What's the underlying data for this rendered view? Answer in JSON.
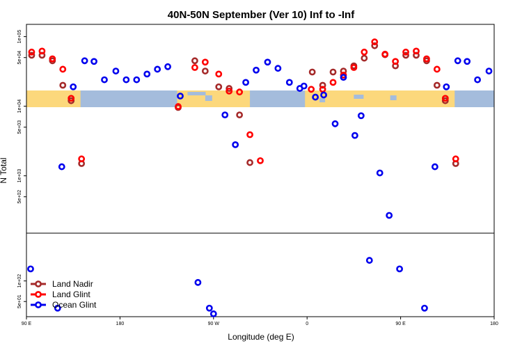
{
  "chart_data": {
    "type": "scatter",
    "title": "40N-50N September (Ver 10)   Inf to -Inf",
    "xlabel": "Longitude (deg E)",
    "ylabel": "N Total",
    "x_scale": "longitude, 90E to 180 (wraps through 0)",
    "y_scale": "log",
    "x_ticks": [
      {
        "lon": 90,
        "label": "90 E"
      },
      {
        "lon": 180,
        "label": "180"
      },
      {
        "lon": 270,
        "label": "90 W"
      },
      {
        "lon": 360,
        "label": "0"
      },
      {
        "lon": 450,
        "label": "90 E"
      },
      {
        "lon": 540,
        "label": "180"
      }
    ],
    "upper_panel": {
      "ylim": [
        150,
        150000
      ],
      "y_ticks": [
        {
          "value": 100000,
          "label": "1e+05"
        },
        {
          "value": 50000,
          "label": "5e+04"
        },
        {
          "value": 10000,
          "label": "1e+04"
        },
        {
          "value": 5000,
          "label": "5e+03"
        },
        {
          "value": 1000,
          "label": "1e+03"
        },
        {
          "value": 500,
          "label": "5e+02"
        }
      ]
    },
    "lower_panel": {
      "ylim": [
        30,
        500
      ],
      "y_ticks": [
        {
          "value": 100,
          "label": "1e+02"
        },
        {
          "value": 50,
          "label": "5e+01"
        }
      ]
    },
    "map_band": {
      "ocean_color": "#a4bcdc",
      "land_color": "#fcd87c"
    },
    "legend": {
      "position": "bottom-left"
    },
    "series": [
      {
        "name": "Land Nadir",
        "color": "#a52a2a",
        "points": [
          {
            "lon": 95,
            "value": 54000,
            "panel": "upper"
          },
          {
            "lon": 105,
            "value": 54000,
            "panel": "upper"
          },
          {
            "lon": 115,
            "value": 45000,
            "panel": "upper"
          },
          {
            "lon": 125,
            "value": 20000,
            "panel": "upper"
          },
          {
            "lon": 133,
            "value": 12000,
            "panel": "upper"
          },
          {
            "lon": 143,
            "value": 1500,
            "panel": "upper"
          },
          {
            "lon": 236,
            "value": 9600,
            "panel": "upper"
          },
          {
            "lon": 252,
            "value": 45000,
            "panel": "upper"
          },
          {
            "lon": 262,
            "value": 32000,
            "panel": "upper"
          },
          {
            "lon": 275,
            "value": 19000,
            "panel": "upper"
          },
          {
            "lon": 285,
            "value": 18000,
            "panel": "upper"
          },
          {
            "lon": 295,
            "value": 7500,
            "panel": "upper"
          },
          {
            "lon": 305,
            "value": 1550,
            "panel": "upper"
          },
          {
            "lon": 365,
            "value": 31000,
            "panel": "upper"
          },
          {
            "lon": 375,
            "value": 20000,
            "panel": "upper"
          },
          {
            "lon": 385,
            "value": 31000,
            "panel": "upper"
          },
          {
            "lon": 395,
            "value": 32000,
            "panel": "upper"
          },
          {
            "lon": 405,
            "value": 38000,
            "panel": "upper"
          },
          {
            "lon": 415,
            "value": 49000,
            "panel": "upper"
          },
          {
            "lon": 425,
            "value": 74000,
            "panel": "upper"
          },
          {
            "lon": 435,
            "value": 55000,
            "panel": "upper"
          },
          {
            "lon": 445,
            "value": 38000,
            "panel": "upper"
          },
          {
            "lon": 455,
            "value": 54000,
            "panel": "upper"
          },
          {
            "lon": 465,
            "value": 54000,
            "panel": "upper"
          },
          {
            "lon": 475,
            "value": 45000,
            "panel": "upper"
          },
          {
            "lon": 485,
            "value": 20000,
            "panel": "upper"
          },
          {
            "lon": 493,
            "value": 12000,
            "panel": "upper"
          },
          {
            "lon": 503,
            "value": 1500,
            "panel": "upper"
          }
        ]
      },
      {
        "name": "Land Glint",
        "color": "#ff0000",
        "points": [
          {
            "lon": 95,
            "value": 60000,
            "panel": "upper"
          },
          {
            "lon": 105,
            "value": 62000,
            "panel": "upper"
          },
          {
            "lon": 115,
            "value": 48000,
            "panel": "upper"
          },
          {
            "lon": 125,
            "value": 34000,
            "panel": "upper"
          },
          {
            "lon": 133,
            "value": 13000,
            "panel": "upper"
          },
          {
            "lon": 143,
            "value": 1750,
            "panel": "upper"
          },
          {
            "lon": 236,
            "value": 9900,
            "panel": "upper"
          },
          {
            "lon": 252,
            "value": 36000,
            "panel": "upper"
          },
          {
            "lon": 262,
            "value": 43000,
            "panel": "upper"
          },
          {
            "lon": 275,
            "value": 29000,
            "panel": "upper"
          },
          {
            "lon": 285,
            "value": 16500,
            "panel": "upper"
          },
          {
            "lon": 295,
            "value": 16000,
            "panel": "upper"
          },
          {
            "lon": 305,
            "value": 3900,
            "panel": "upper"
          },
          {
            "lon": 315,
            "value": 1650,
            "panel": "upper"
          },
          {
            "lon": 364,
            "value": 17500,
            "panel": "upper"
          },
          {
            "lon": 375,
            "value": 17500,
            "panel": "upper"
          },
          {
            "lon": 385,
            "value": 22000,
            "panel": "upper"
          },
          {
            "lon": 395,
            "value": 28000,
            "panel": "upper"
          },
          {
            "lon": 405,
            "value": 36000,
            "panel": "upper"
          },
          {
            "lon": 415,
            "value": 60000,
            "panel": "upper"
          },
          {
            "lon": 425,
            "value": 84000,
            "panel": "upper"
          },
          {
            "lon": 435,
            "value": 56000,
            "panel": "upper"
          },
          {
            "lon": 445,
            "value": 44000,
            "panel": "upper"
          },
          {
            "lon": 455,
            "value": 60000,
            "panel": "upper"
          },
          {
            "lon": 465,
            "value": 62000,
            "panel": "upper"
          },
          {
            "lon": 475,
            "value": 48000,
            "panel": "upper"
          },
          {
            "lon": 485,
            "value": 34000,
            "panel": "upper"
          },
          {
            "lon": 493,
            "value": 13000,
            "panel": "upper"
          },
          {
            "lon": 503,
            "value": 1750,
            "panel": "upper"
          }
        ]
      },
      {
        "name": "Ocean Glint",
        "color": "#0000ee",
        "points": [
          {
            "lon": 94,
            "value": 150,
            "panel": "lower"
          },
          {
            "lon": 120,
            "value": 40,
            "panel": "lower"
          },
          {
            "lon": 124,
            "value": 1350,
            "panel": "upper"
          },
          {
            "lon": 135,
            "value": 19000,
            "panel": "upper"
          },
          {
            "lon": 146,
            "value": 45000,
            "panel": "upper"
          },
          {
            "lon": 155,
            "value": 44000,
            "panel": "upper"
          },
          {
            "lon": 165,
            "value": 24000,
            "panel": "upper"
          },
          {
            "lon": 176,
            "value": 32000,
            "panel": "upper"
          },
          {
            "lon": 186,
            "value": 24000,
            "panel": "upper"
          },
          {
            "lon": 196,
            "value": 24000,
            "panel": "upper"
          },
          {
            "lon": 206,
            "value": 29000,
            "panel": "upper"
          },
          {
            "lon": 216,
            "value": 34000,
            "panel": "upper"
          },
          {
            "lon": 226,
            "value": 37000,
            "panel": "upper"
          },
          {
            "lon": 238,
            "value": 14000,
            "panel": "upper"
          },
          {
            "lon": 255,
            "value": 95,
            "panel": "lower"
          },
          {
            "lon": 266,
            "value": 40,
            "panel": "lower"
          },
          {
            "lon": 270,
            "value": 33,
            "panel": "lower"
          },
          {
            "lon": 281,
            "value": 7500,
            "panel": "upper"
          },
          {
            "lon": 291,
            "value": 2800,
            "panel": "upper"
          },
          {
            "lon": 301,
            "value": 22000,
            "panel": "upper"
          },
          {
            "lon": 311,
            "value": 33000,
            "panel": "upper"
          },
          {
            "lon": 322,
            "value": 43000,
            "panel": "upper"
          },
          {
            "lon": 332,
            "value": 35000,
            "panel": "upper"
          },
          {
            "lon": 343,
            "value": 22000,
            "panel": "upper"
          },
          {
            "lon": 353,
            "value": 18000,
            "panel": "upper"
          },
          {
            "lon": 357,
            "value": 19500,
            "panel": "upper"
          },
          {
            "lon": 368,
            "value": 13500,
            "panel": "upper"
          },
          {
            "lon": 376,
            "value": 14500,
            "panel": "upper"
          },
          {
            "lon": 387,
            "value": 5600,
            "panel": "upper"
          },
          {
            "lon": 395,
            "value": 26000,
            "panel": "upper"
          },
          {
            "lon": 406,
            "value": 3800,
            "panel": "upper"
          },
          {
            "lon": 412,
            "value": 7300,
            "panel": "upper"
          },
          {
            "lon": 420,
            "value": 200,
            "panel": "lower"
          },
          {
            "lon": 430,
            "value": 1100,
            "panel": "upper"
          },
          {
            "lon": 439,
            "value": 270,
            "panel": "upper"
          },
          {
            "lon": 449,
            "value": 150,
            "panel": "lower"
          },
          {
            "lon": 473,
            "value": 40,
            "panel": "lower"
          },
          {
            "lon": 483,
            "value": 1350,
            "panel": "upper"
          },
          {
            "lon": 494,
            "value": 19000,
            "panel": "upper"
          },
          {
            "lon": 505,
            "value": 45000,
            "panel": "upper"
          },
          {
            "lon": 514,
            "value": 44000,
            "panel": "upper"
          },
          {
            "lon": 524,
            "value": 24000,
            "panel": "upper"
          },
          {
            "lon": 535,
            "value": 32000,
            "panel": "upper"
          }
        ]
      }
    ]
  }
}
